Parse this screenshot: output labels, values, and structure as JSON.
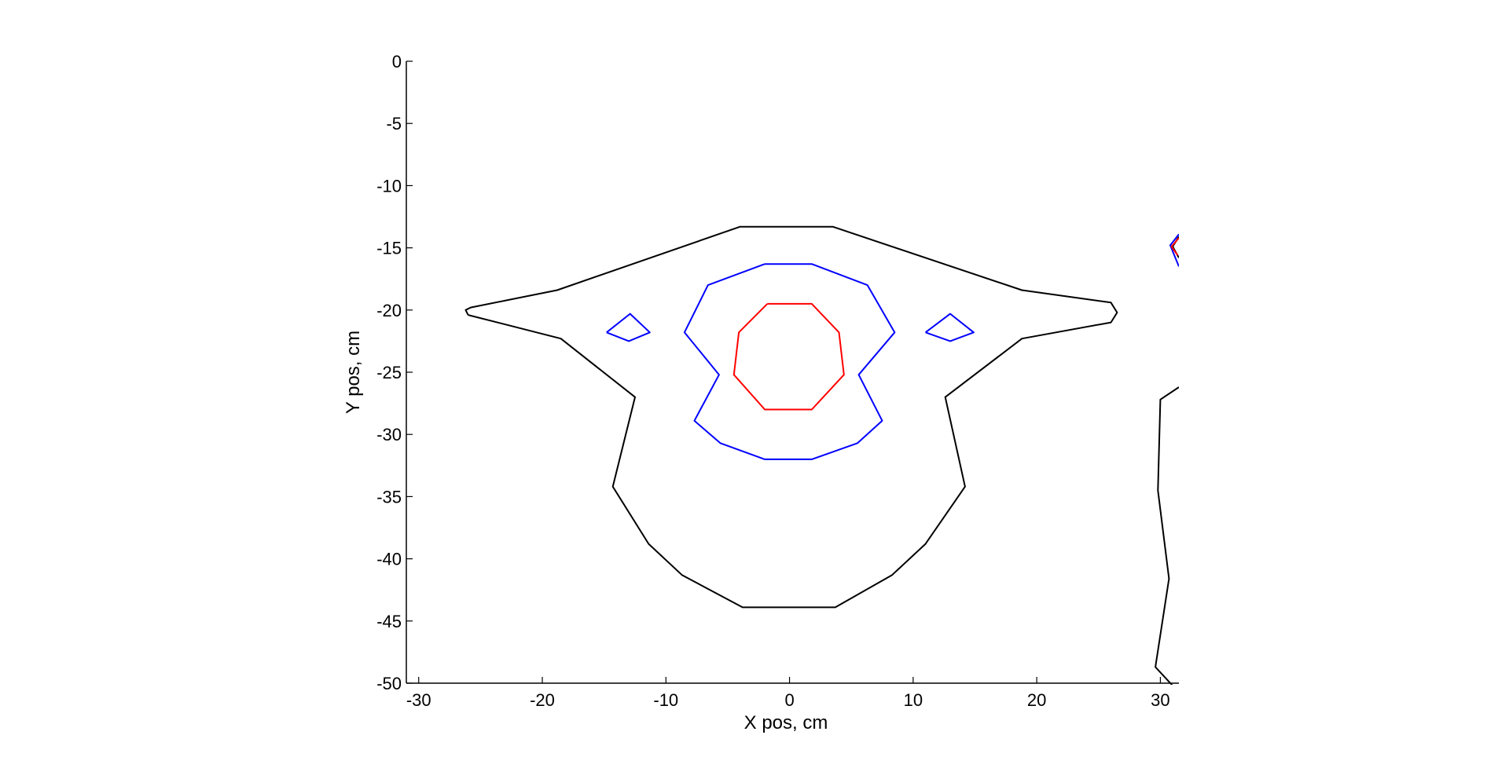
{
  "chart_data": {
    "type": "line",
    "subtype": "contour",
    "xlabel": "X pos, cm",
    "ylabel": "Y pos, cm",
    "xlim": [
      -31,
      31.5
    ],
    "ylim": [
      -50,
      0
    ],
    "xticks": [
      -30,
      -20,
      -10,
      0,
      10,
      20,
      30
    ],
    "yticks": [
      0,
      -5,
      -10,
      -15,
      -20,
      -25,
      -30,
      -35,
      -40,
      -45,
      -50
    ],
    "grid": false,
    "legend": "none",
    "series": [
      {
        "color": "#000000",
        "points": [
          [
            -26,
            -20.4
          ],
          [
            -26.2,
            -20
          ],
          [
            -25.8,
            -19.8
          ],
          [
            -18.8,
            -18.4
          ],
          [
            -4,
            -13.3
          ],
          [
            3.5,
            -13.3
          ],
          [
            18.8,
            -18.4
          ],
          [
            26,
            -19.4
          ],
          [
            26.5,
            -20.2
          ],
          [
            26,
            -21
          ],
          [
            18.8,
            -22.3
          ],
          [
            12.6,
            -27
          ],
          [
            14.2,
            -34.2
          ],
          [
            11,
            -38.8
          ],
          [
            8.3,
            -41.3
          ],
          [
            3.7,
            -43.9
          ],
          [
            -3.8,
            -43.9
          ],
          [
            -8.7,
            -41.3
          ],
          [
            -11.4,
            -38.8
          ],
          [
            -14.3,
            -34.2
          ],
          [
            -12.5,
            -27
          ],
          [
            -18.5,
            -22.3
          ],
          [
            -26,
            -20.4
          ]
        ]
      },
      {
        "color": "#000000",
        "points": [
          [
            31.5,
            -26.2
          ],
          [
            30,
            -27.2
          ],
          [
            29.8,
            -34.5
          ],
          [
            30.7,
            -41.6
          ],
          [
            29.6,
            -48.7
          ],
          [
            31,
            -50.2
          ]
        ]
      },
      {
        "color": "#000000",
        "points": [
          [
            31.5,
            -14.1
          ],
          [
            31,
            -14.9
          ],
          [
            31.5,
            -15.8
          ]
        ]
      },
      {
        "color": "#0000ff",
        "points": [
          [
            -2,
            -16.3
          ],
          [
            1.8,
            -16.3
          ],
          [
            6.3,
            -18
          ],
          [
            8.5,
            -21.8
          ],
          [
            5.6,
            -25.2
          ],
          [
            7.5,
            -28.9
          ],
          [
            5.5,
            -30.7
          ],
          [
            1.8,
            -32
          ],
          [
            -2,
            -32
          ],
          [
            -5.6,
            -30.7
          ],
          [
            -7.7,
            -28.9
          ],
          [
            -5.7,
            -25.2
          ],
          [
            -8.5,
            -21.8
          ],
          [
            -6.6,
            -18
          ],
          [
            -2,
            -16.3
          ]
        ]
      },
      {
        "color": "#0000ff",
        "points": [
          [
            -14.8,
            -21.8
          ],
          [
            -12.9,
            -20.3
          ],
          [
            -11.3,
            -21.8
          ],
          [
            -13,
            -22.5
          ],
          [
            -14.8,
            -21.8
          ]
        ]
      },
      {
        "color": "#0000ff",
        "points": [
          [
            11,
            -21.8
          ],
          [
            13,
            -20.3
          ],
          [
            14.9,
            -21.8
          ],
          [
            13,
            -22.5
          ],
          [
            11,
            -21.8
          ]
        ]
      },
      {
        "color": "#0000ff",
        "points": [
          [
            31.5,
            -13.9
          ],
          [
            30.8,
            -14.8
          ],
          [
            31.5,
            -16.5
          ]
        ]
      },
      {
        "color": "#ff0000",
        "points": [
          [
            -1.8,
            -19.5
          ],
          [
            1.8,
            -19.5
          ],
          [
            4,
            -21.8
          ],
          [
            4.4,
            -25.2
          ],
          [
            1.8,
            -28
          ],
          [
            -2,
            -28
          ],
          [
            -4.5,
            -25.2
          ],
          [
            -4.1,
            -21.8
          ],
          [
            -1.8,
            -19.5
          ]
        ]
      },
      {
        "color": "#ff0000",
        "points": [
          [
            31.5,
            -14.2
          ],
          [
            30.9,
            -14.9
          ],
          [
            31.4,
            -15.6
          ]
        ]
      }
    ]
  }
}
